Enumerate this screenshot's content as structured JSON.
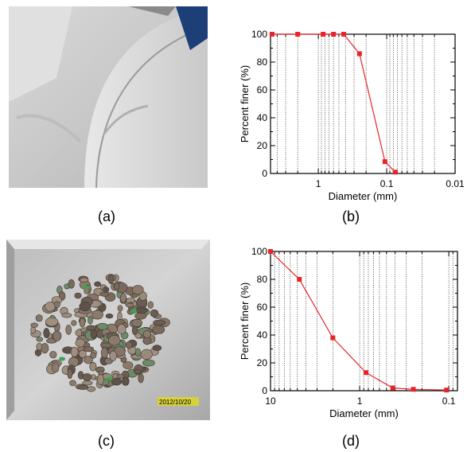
{
  "captions": {
    "a": "(a)",
    "b": "(b)",
    "c": "(c)",
    "d": "(d)"
  },
  "photo_c_stamp": "2012/10/20",
  "colors": {
    "series": "#e8242a",
    "axis": "#000000",
    "grid": "#333333"
  },
  "chart_data": [
    {
      "type": "line",
      "panel": "b",
      "xlabel": "Diameter (mm)",
      "ylabel": "Percent finer (%)",
      "x_scale": "log",
      "x_reversed": true,
      "xlim": [
        5,
        0.01
      ],
      "ylim": [
        0,
        100
      ],
      "xticks": [
        1,
        0.1,
        0.01
      ],
      "xtick_labels": [
        "1",
        "0.1",
        "0.01"
      ],
      "yticks": [
        0,
        20,
        40,
        60,
        80,
        100
      ],
      "grid": "vertical dotted minor lines",
      "marker": "square",
      "x": [
        4.75,
        2.0,
        0.85,
        0.6,
        0.425,
        0.25,
        0.106,
        0.075
      ],
      "y": [
        100,
        100,
        100,
        100,
        100,
        86,
        8.5,
        1
      ]
    },
    {
      "type": "line",
      "panel": "d",
      "xlabel": "Diameter (mm)",
      "ylabel": "Percent finer (%)",
      "x_scale": "log",
      "x_reversed": true,
      "xlim": [
        10,
        0.08
      ],
      "ylim": [
        0,
        100
      ],
      "xticks": [
        10,
        1,
        0.1
      ],
      "xtick_labels": [
        "10",
        "1",
        "0.1"
      ],
      "yticks": [
        0,
        20,
        40,
        60,
        80,
        100
      ],
      "grid": "vertical dotted minor lines",
      "marker": "square",
      "x": [
        10,
        4.75,
        2.0,
        0.85,
        0.425,
        0.25,
        0.106
      ],
      "y": [
        100,
        80,
        38,
        13,
        2,
        1,
        0.5
      ]
    }
  ]
}
